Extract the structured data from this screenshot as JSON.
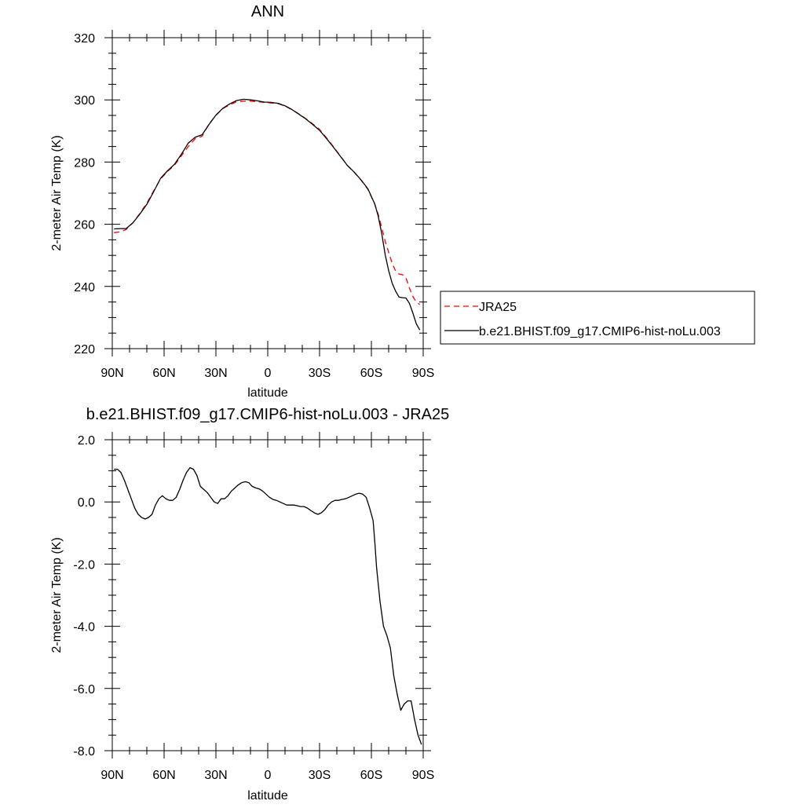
{
  "chart_data": [
    {
      "type": "line",
      "title": "ANN",
      "xlabel": "latitude",
      "ylabel": "2-meter Air Temp (K)",
      "xlim": [
        90,
        -90
      ],
      "ylim": [
        220,
        320
      ],
      "x_ticks": [
        90,
        60,
        30,
        0,
        -30,
        -60,
        -90
      ],
      "x_tick_labels": [
        "90N",
        "60N",
        "30N",
        "0",
        "30S",
        "60S",
        "90S"
      ],
      "y_ticks": [
        220,
        240,
        260,
        280,
        300,
        320
      ],
      "y_tick_labels": [
        "220",
        "240",
        "260",
        "280",
        "300",
        "320"
      ],
      "legend_position": "outside-right",
      "grid": false,
      "series": [
        {
          "name": "JRA25",
          "color": "#ff0000",
          "dash": "dashed",
          "x": [
            89,
            85,
            82,
            78,
            74,
            70,
            66,
            62,
            58,
            54,
            50,
            46,
            42,
            38,
            34,
            30,
            26,
            22,
            18,
            14,
            10,
            6,
            2,
            -2,
            -6,
            -10,
            -14,
            -18,
            -22,
            -26,
            -30,
            -34,
            -38,
            -42,
            -46,
            -50,
            -54,
            -58,
            -62,
            -64,
            -66,
            -68,
            -70,
            -72,
            -74,
            -76,
            -78,
            -80,
            -82,
            -84,
            -86,
            -88
          ],
          "y": [
            257.3,
            257.6,
            258.3,
            260.5,
            263.5,
            266.8,
            270.8,
            274.6,
            277.0,
            279.0,
            282.0,
            285.0,
            287.5,
            288.3,
            292.3,
            295.0,
            297.2,
            298.4,
            299.4,
            299.6,
            299.6,
            299.4,
            299.2,
            299.0,
            298.8,
            298.0,
            296.9,
            295.5,
            294.0,
            292.3,
            290.5,
            287.8,
            285.0,
            282.0,
            279.0,
            276.8,
            274.2,
            271.2,
            266.4,
            263.1,
            259.0,
            254.5,
            251.0,
            247.5,
            245.0,
            244.0,
            243.8,
            242.8,
            239.5,
            236.8,
            235.0,
            234.2
          ]
        },
        {
          "name": "b.e21.BHIST.f09_g17.CMIP6-hist-noLu.003",
          "color": "#000000",
          "dash": "solid",
          "x": [
            89,
            85,
            82,
            78,
            74,
            70,
            66,
            62,
            58,
            54,
            50,
            46,
            42,
            38,
            34,
            30,
            26,
            22,
            18,
            14,
            10,
            6,
            2,
            -2,
            -6,
            -10,
            -14,
            -18,
            -22,
            -26,
            -30,
            -34,
            -38,
            -42,
            -46,
            -50,
            -54,
            -58,
            -62,
            -64,
            -66,
            -68,
            -70,
            -72,
            -74,
            -76,
            -78,
            -80,
            -82,
            -84,
            -86,
            -88
          ],
          "y": [
            258.5,
            258.6,
            258.6,
            260.5,
            263.3,
            266.4,
            270.5,
            274.8,
            277.2,
            279.3,
            282.5,
            286.1,
            288.0,
            288.8,
            292.1,
            295.1,
            297.3,
            298.7,
            299.8,
            300.2,
            300.0,
            299.7,
            299.3,
            299.2,
            298.9,
            298.1,
            296.9,
            295.4,
            293.9,
            292.1,
            290.2,
            287.6,
            284.8,
            281.9,
            279.0,
            276.8,
            274.3,
            271.4,
            266.5,
            262.5,
            257.0,
            250.2,
            245.1,
            241.1,
            238.5,
            236.6,
            236.4,
            236.3,
            234.6,
            231.5,
            228.0,
            226.0
          ]
        }
      ]
    },
    {
      "type": "line",
      "title": "b.e21.BHIST.f09_g17.CMIP6-hist-noLu.003 - JRA25",
      "xlabel": "latitude",
      "ylabel": "2-meter Air Temp (K)",
      "xlim": [
        90,
        -90
      ],
      "ylim": [
        -8,
        2
      ],
      "x_ticks": [
        90,
        60,
        30,
        0,
        -30,
        -60,
        -90
      ],
      "x_tick_labels": [
        "90N",
        "60N",
        "30N",
        "0",
        "30S",
        "60S",
        "90S"
      ],
      "y_ticks": [
        -8,
        -6,
        -4,
        -2,
        0,
        2
      ],
      "y_tick_labels": [
        "-8.0",
        "-6.0",
        "-4.0",
        "-2.0",
        "0.0",
        "2.0"
      ],
      "grid": false,
      "series": [
        {
          "color": "#000000",
          "dash": "solid",
          "x": [
            89,
            87,
            85,
            83,
            81,
            79,
            77,
            75,
            73,
            71,
            69,
            67,
            65,
            63,
            61,
            59,
            57,
            55,
            53,
            51,
            49,
            47,
            45,
            43,
            41,
            39,
            37,
            35,
            33,
            31,
            29,
            27,
            25,
            23,
            21,
            19,
            17,
            15,
            13,
            11,
            9,
            7,
            5,
            3,
            1,
            -1,
            -3,
            -5,
            -7,
            -9,
            -11,
            -13,
            -15,
            -17,
            -19,
            -21,
            -23,
            -25,
            -27,
            -29,
            -31,
            -33,
            -35,
            -37,
            -39,
            -41,
            -43,
            -45,
            -47,
            -49,
            -51,
            -53,
            -55,
            -57,
            -59,
            -61,
            -62,
            -63,
            -65,
            -67,
            -69,
            -71,
            -73,
            -75,
            -77,
            -79,
            -81,
            -83,
            -85,
            -87,
            -89
          ],
          "y": [
            1.05,
            1.05,
            0.95,
            0.7,
            0.4,
            0.1,
            -0.2,
            -0.4,
            -0.5,
            -0.55,
            -0.5,
            -0.4,
            -0.1,
            0.1,
            0.2,
            0.1,
            0.05,
            0.05,
            0.15,
            0.4,
            0.7,
            0.95,
            1.1,
            1.05,
            0.85,
            0.5,
            0.4,
            0.3,
            0.15,
            0.0,
            -0.05,
            0.1,
            0.1,
            0.2,
            0.35,
            0.45,
            0.55,
            0.62,
            0.65,
            0.62,
            0.5,
            0.45,
            0.42,
            0.35,
            0.25,
            0.15,
            0.08,
            0.05,
            0.0,
            -0.05,
            -0.1,
            -0.1,
            -0.1,
            -0.12,
            -0.15,
            -0.15,
            -0.2,
            -0.28,
            -0.35,
            -0.4,
            -0.35,
            -0.25,
            -0.1,
            0.0,
            0.05,
            0.05,
            0.08,
            0.1,
            0.15,
            0.2,
            0.25,
            0.28,
            0.25,
            0.15,
            -0.2,
            -0.6,
            -1.3,
            -2.1,
            -3.2,
            -4.0,
            -4.3,
            -4.7,
            -5.6,
            -6.2,
            -6.7,
            -6.5,
            -6.4,
            -6.4,
            -7.0,
            -7.5,
            -7.8
          ]
        }
      ]
    }
  ]
}
